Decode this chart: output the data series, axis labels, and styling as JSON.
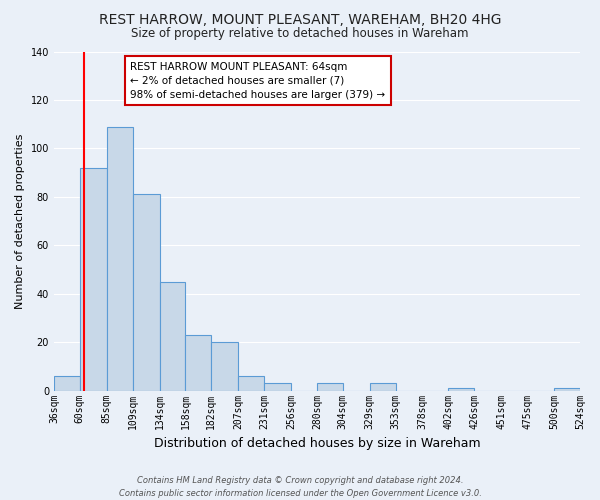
{
  "title": "REST HARROW, MOUNT PLEASANT, WAREHAM, BH20 4HG",
  "subtitle": "Size of property relative to detached houses in Wareham",
  "xlabel": "Distribution of detached houses by size in Wareham",
  "ylabel": "Number of detached properties",
  "bar_color": "#c8d8e8",
  "bar_edge_color": "#5b9bd5",
  "background_color": "#eaf0f8",
  "plot_bg_color": "#eaf0f8",
  "grid_color": "#ffffff",
  "bin_edges": [
    36,
    60,
    85,
    109,
    134,
    158,
    182,
    207,
    231,
    256,
    280,
    304,
    329,
    353,
    378,
    402,
    426,
    451,
    475,
    500,
    524
  ],
  "bin_labels": [
    "36sqm",
    "60sqm",
    "85sqm",
    "109sqm",
    "134sqm",
    "158sqm",
    "182sqm",
    "207sqm",
    "231sqm",
    "256sqm",
    "280sqm",
    "304sqm",
    "329sqm",
    "353sqm",
    "378sqm",
    "402sqm",
    "426sqm",
    "451sqm",
    "475sqm",
    "500sqm",
    "524sqm"
  ],
  "bar_heights": [
    6,
    92,
    109,
    81,
    45,
    23,
    20,
    6,
    3,
    0,
    3,
    0,
    3,
    0,
    0,
    1,
    0,
    0,
    0,
    1
  ],
  "ylim": [
    0,
    140
  ],
  "yticks": [
    0,
    20,
    40,
    60,
    80,
    100,
    120,
    140
  ],
  "red_line_x": 64,
  "annotation_title": "REST HARROW MOUNT PLEASANT: 64sqm",
  "annotation_line1": "← 2% of detached houses are smaller (7)",
  "annotation_line2": "98% of semi-detached houses are larger (379) →",
  "annotation_box_color": "#ffffff",
  "annotation_box_edge": "#cc0000",
  "footer1": "Contains HM Land Registry data © Crown copyright and database right 2024.",
  "footer2": "Contains public sector information licensed under the Open Government Licence v3.0.",
  "title_fontsize": 10,
  "subtitle_fontsize": 8.5,
  "xlabel_fontsize": 9,
  "ylabel_fontsize": 8,
  "tick_fontsize": 7,
  "annotation_fontsize": 7.5,
  "footer_fontsize": 6
}
